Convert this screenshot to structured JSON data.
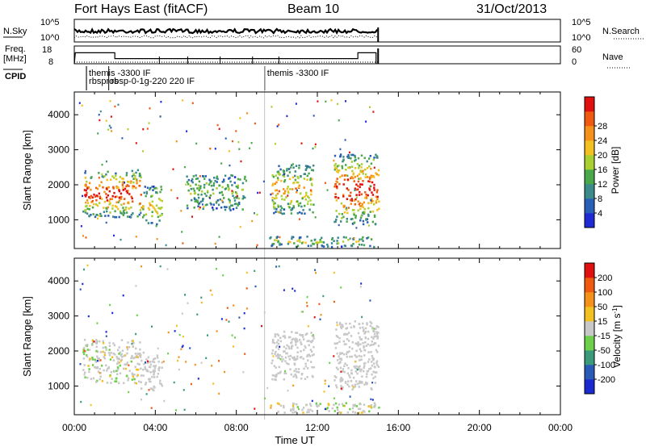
{
  "header": {
    "station": "Fort Hays East (fitACF)",
    "beam": "Beam 10",
    "date": "31/Oct/2013"
  },
  "noise_panel": {
    "left_label": "N.Sky",
    "right_label": "N.Search",
    "left_ticks": [
      "10^5",
      "10^0"
    ],
    "right_ticks": [
      "10^5",
      "10^0"
    ]
  },
  "freq_panel": {
    "left_label": "Freq.",
    "left_unit": "[MHz]",
    "right_label": "Nave",
    "left_ticks": [
      "18",
      "8"
    ],
    "right_ticks": [
      "60",
      "0"
    ]
  },
  "cpid": {
    "label": "CPID",
    "entries": [
      {
        "time": 0.6,
        "text": "rbspros"
      },
      {
        "time": 0.6,
        "text": "themis -3300 IF"
      },
      {
        "time": 1.7,
        "text": "rbsp-0-1g-220 220 IF"
      },
      {
        "time": 9.4,
        "text": "themis -3300 IF"
      }
    ]
  },
  "chart_data": [
    {
      "type": "heatmap",
      "name": "power",
      "ylabel": "Slant Range [km]",
      "xlabel": "Time UT",
      "x_ticks": [
        "00:00",
        "04:00",
        "08:00",
        "12:00",
        "16:00",
        "20:00",
        "00:00"
      ],
      "xlim": [
        0,
        24
      ],
      "ylim": [
        180,
        4650
      ],
      "y_ticks": [
        1000,
        2000,
        3000,
        4000
      ],
      "colorbar": {
        "label": "Power [dB]",
        "ticks": [
          "4",
          "8",
          "12",
          "16",
          "20",
          "24",
          "28"
        ],
        "colors": [
          "#1f2ad4",
          "#2a5fb8",
          "#3c8a8a",
          "#4aa84a",
          "#a8d030",
          "#f2c020",
          "#f59018",
          "#ef5a10",
          "#e01010"
        ]
      },
      "regions": [
        {
          "t0": 0.4,
          "t1": 3.3,
          "r0": 1100,
          "r1": 2450,
          "level": 0.85
        },
        {
          "t0": 3.3,
          "t1": 4.3,
          "r0": 900,
          "r1": 2000,
          "level": 0.45
        },
        {
          "t0": 5.5,
          "t1": 8.5,
          "r0": 1300,
          "r1": 2300,
          "level": 0.25
        },
        {
          "t0": 9.7,
          "t1": 11.8,
          "r0": 1200,
          "r1": 2600,
          "level": 0.55
        },
        {
          "t0": 12.8,
          "t1": 15.0,
          "r0": 900,
          "r1": 2900,
          "level": 0.9
        },
        {
          "t0": 9.6,
          "t1": 15.0,
          "r0": 250,
          "r1": 550,
          "level": 0.3
        }
      ]
    },
    {
      "type": "heatmap",
      "name": "velocity",
      "ylabel": "Slant Range [km]",
      "xlabel": "Time UT",
      "x_ticks": [
        "00:00",
        "04:00",
        "08:00",
        "12:00",
        "16:00",
        "20:00",
        "00:00"
      ],
      "xlim": [
        0,
        24
      ],
      "ylim": [
        180,
        4650
      ],
      "y_ticks": [
        1000,
        2000,
        3000,
        4000
      ],
      "colorbar": {
        "label": "Velocity [m s",
        "label_sup": "-1",
        "label_end": "]",
        "ticks": [
          "200",
          "100",
          "50",
          "15",
          "-15",
          "-50",
          "-100",
          "-200"
        ],
        "colors": [
          "#1a2ad0",
          "#2a5ab8",
          "#3a9a7a",
          "#6ed04a",
          "#c8c8c8",
          "#f2c020",
          "#f59018",
          "#ef5a10",
          "#e01010"
        ]
      },
      "regions": [
        {
          "t0": 0.4,
          "t1": 3.2,
          "r0": 1100,
          "r1": 2350,
          "level": 0.5
        },
        {
          "t0": 3.2,
          "t1": 4.3,
          "r0": 900,
          "r1": 2000,
          "level": 0.25
        },
        {
          "t0": 9.7,
          "t1": 11.8,
          "r0": 1200,
          "r1": 2600,
          "level": 0.3
        },
        {
          "t0": 12.8,
          "t1": 15.0,
          "r0": 900,
          "r1": 2900,
          "level": 0.3
        },
        {
          "t0": 9.6,
          "t1": 15.0,
          "r0": 250,
          "r1": 550,
          "level": 0.6
        }
      ]
    }
  ]
}
